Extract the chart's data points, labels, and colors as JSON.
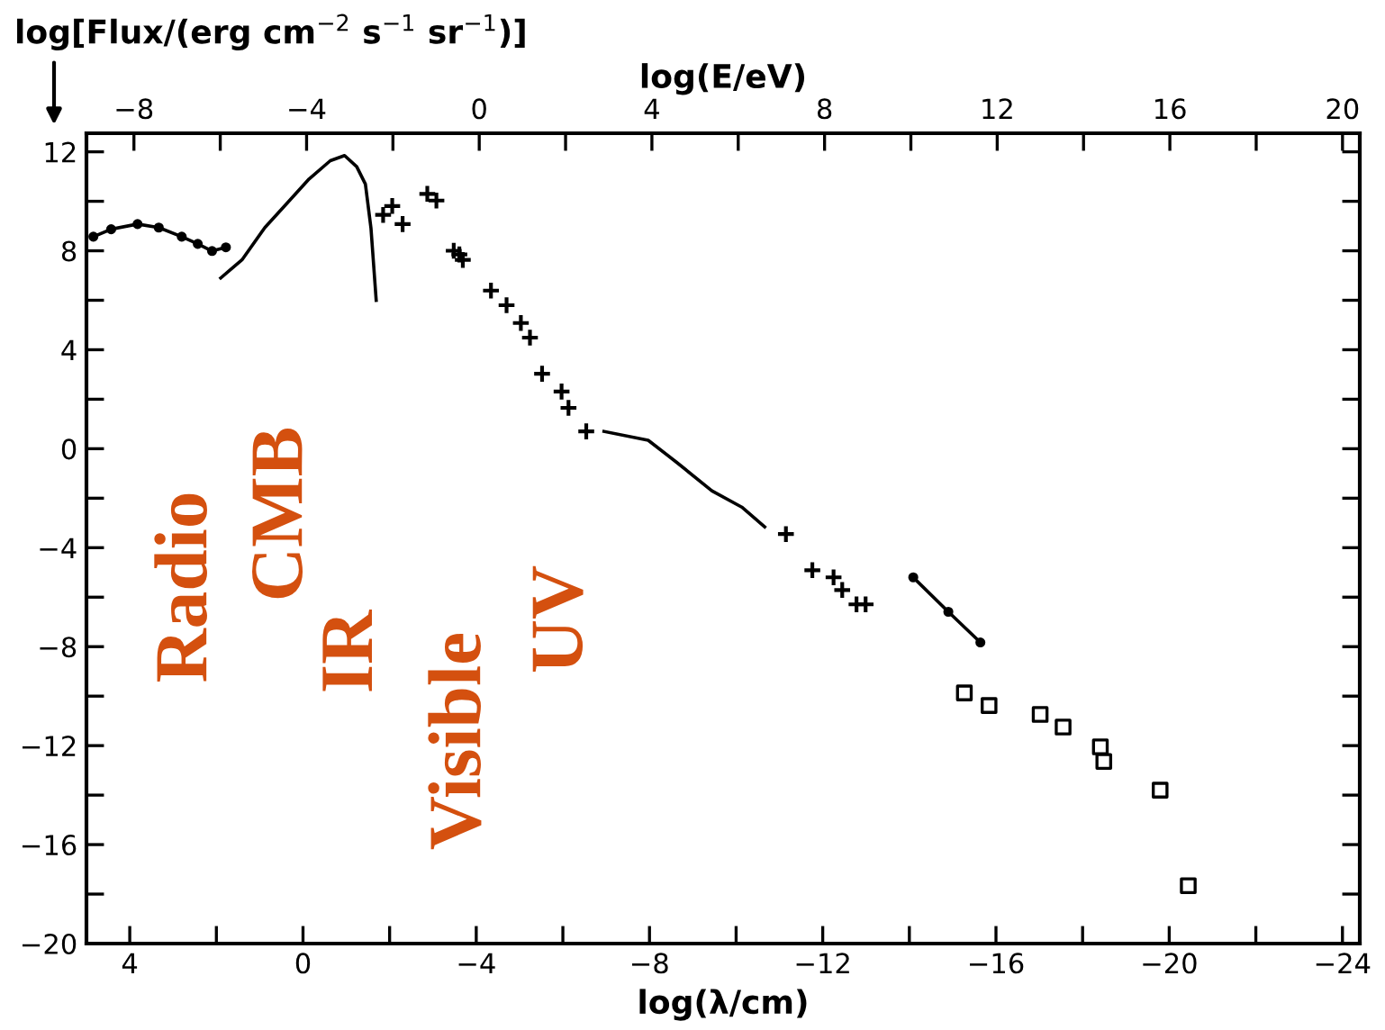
{
  "chart_data": {
    "type": "scatter",
    "xlabel": "log(λ/cm)",
    "ylabel": "log[Flux/(erg cm$^{−2}$ s$^{−1}$ sr$^{−1}$)]",
    "x2label": "log(E/eV)",
    "xlim": [
      5,
      -24.4
    ],
    "ylim": [
      -20,
      12.75
    ],
    "x2lim": [
      -9.1,
      20.4
    ],
    "xticks": [
      4,
      {
        "value": 2,
        "label": null
      },
      0,
      {
        "value": -2,
        "label": null
      },
      -4,
      {
        "value": -6,
        "label": null
      },
      -8,
      {
        "value": -10,
        "label": null
      },
      -12,
      {
        "value": -14,
        "label": null
      },
      -16,
      {
        "value": -18,
        "label": null
      },
      -20,
      {
        "value": -22,
        "label": null
      },
      -24
    ],
    "x2ticks": [
      -8,
      {
        "value": -6,
        "label": null
      },
      -4,
      {
        "value": -2,
        "label": null
      },
      0,
      {
        "value": 2,
        "label": null
      },
      4,
      {
        "value": 6,
        "label": null
      },
      8,
      {
        "value": 10,
        "label": null
      },
      12,
      {
        "value": 14,
        "label": null
      },
      16,
      {
        "value": 18,
        "label": null
      },
      20
    ],
    "yticks": [
      -20,
      {
        "value": -18,
        "label": null
      },
      -16,
      {
        "value": -14,
        "label": null
      },
      -12,
      {
        "value": -10,
        "label": null
      },
      -8,
      {
        "value": -6,
        "label": null
      },
      -4,
      {
        "value": -2,
        "label": null
      },
      0,
      {
        "value": 2,
        "label": null
      },
      4,
      {
        "value": 6,
        "label": null
      },
      8,
      {
        "value": 10,
        "label": null
      },
      12
    ],
    "grid": false,
    "annotations": [
      "Radio",
      "CMB",
      "IR",
      "Visible",
      "UV"
    ],
    "series": [
      {
        "type": "line",
        "color": "#000000",
        "marker": "circle",
        "x": [
          4.84,
          4.43,
          3.82,
          3.33,
          2.8,
          2.43,
          2.1,
          1.78
        ],
        "values": [
          8.57,
          8.87,
          9.08,
          8.94,
          8.57,
          8.28,
          7.99,
          8.14
        ]
      },
      {
        "type": "line",
        "color": "#000000",
        "marker": "none",
        "x": [
          1.9,
          1.41,
          0.88,
          0.35,
          -0.14,
          -0.63,
          -0.96,
          -1.24,
          -1.44,
          -1.57,
          -1.69
        ],
        "values": [
          6.9,
          7.63,
          8.94,
          9.96,
          10.9,
          11.64,
          11.85,
          11.4,
          10.7,
          8.9,
          6.0
        ]
      },
      {
        "color": "#000000",
        "marker": "cross",
        "x": [
          -1.85,
          -2.06,
          -2.3,
          -2.87,
          -3.08,
          -3.48,
          -3.61,
          -3.69,
          -4.34,
          -4.7,
          -5.03,
          -5.24,
          -5.52,
          -5.97,
          -6.13,
          -6.54,
          -11.15,
          -11.76,
          -12.25,
          -12.45,
          -12.78,
          -12.99
        ],
        "values": [
          9.45,
          9.81,
          9.08,
          10.3,
          10.03,
          8.0,
          7.85,
          7.63,
          6.39,
          5.8,
          5.08,
          4.49,
          3.03,
          2.31,
          1.65,
          0.7,
          -3.45,
          -4.91,
          -5.2,
          -5.71,
          -6.29,
          -6.29
        ]
      },
      {
        "type": "line",
        "color": "#000000",
        "marker": "none",
        "x": [
          -6.95,
          -7.97,
          -8.62,
          -9.44,
          -10.13,
          -10.66
        ],
        "values": [
          0.7,
          0.34,
          -0.54,
          -1.7,
          -2.36,
          -3.16
        ]
      },
      {
        "type": "line",
        "color": "#000000",
        "marker": "circle",
        "x": [
          -14.09,
          -14.9,
          -15.64
        ],
        "values": [
          -5.2,
          -6.59,
          -7.83
        ]
      },
      {
        "color": "#000000",
        "marker": "square",
        "x": [
          -15.27,
          -15.84,
          -17.02,
          -17.55,
          -18.41,
          -18.49,
          -19.79,
          -20.44
        ],
        "values": [
          -9.87,
          -10.38,
          -10.74,
          -11.25,
          -12.05,
          -12.64,
          -13.8,
          -17.66
        ]
      }
    ]
  }
}
